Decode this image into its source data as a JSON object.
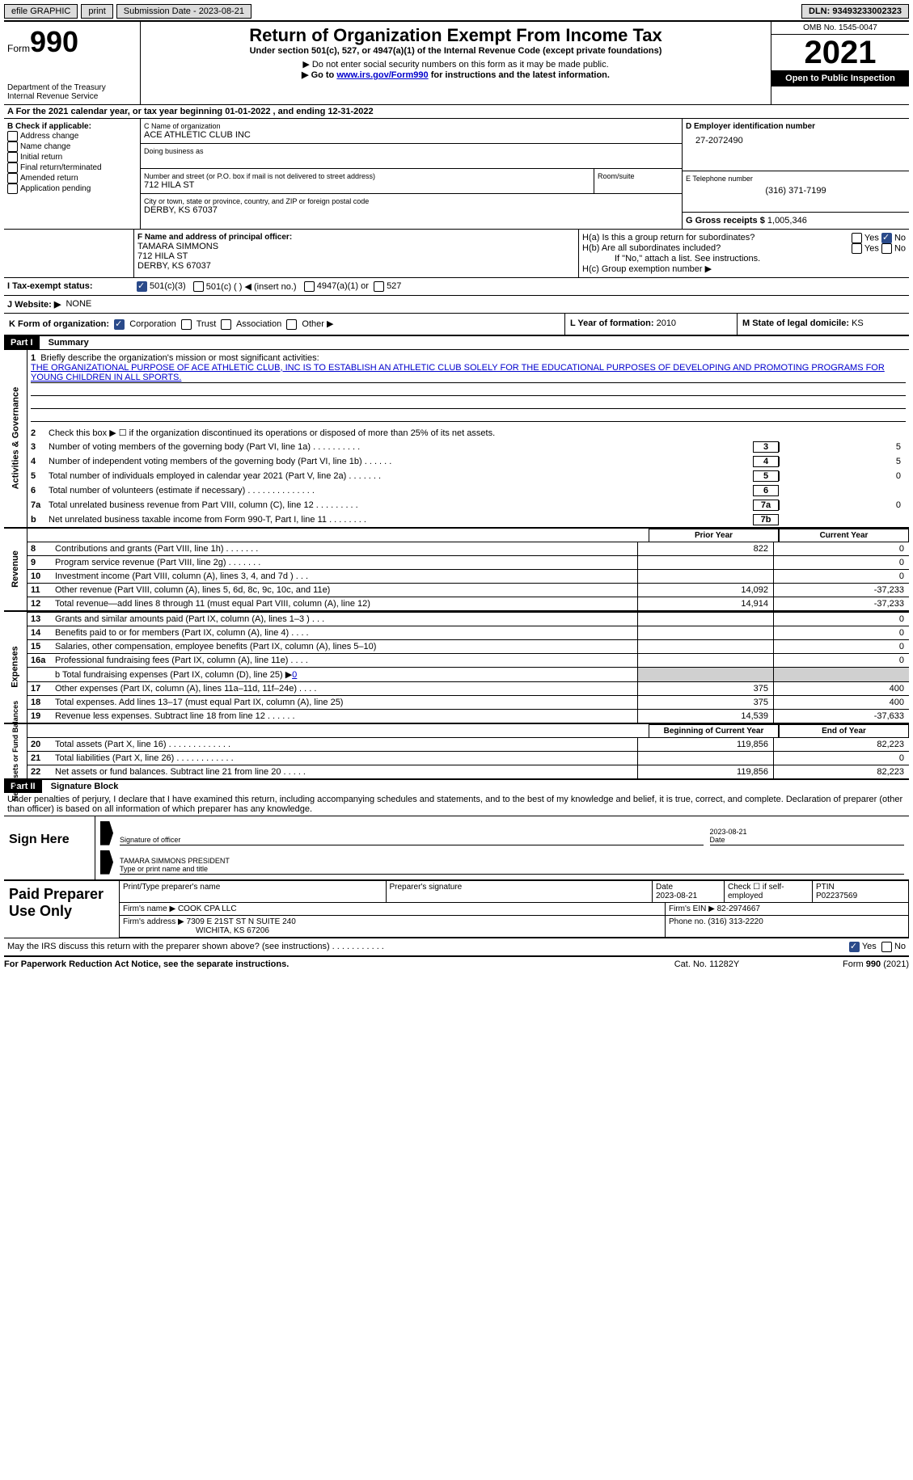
{
  "topbar": {
    "efile": "efile GRAPHIC",
    "print": "print",
    "submission": "Submission Date - 2023-08-21",
    "dln": "DLN: 93493233002323"
  },
  "header": {
    "form_word": "Form",
    "form_num": "990",
    "dept": "Department of the Treasury",
    "irs": "Internal Revenue Service",
    "title": "Return of Organization Exempt From Income Tax",
    "subtitle": "Under section 501(c), 527, or 4947(a)(1) of the Internal Revenue Code (except private foundations)",
    "note1": "▶ Do not enter social security numbers on this form as it may be made public.",
    "note2_pre": "▶ Go to ",
    "note2_link": "www.irs.gov/Form990",
    "note2_post": " for instructions and the latest information.",
    "omb": "OMB No. 1545-0047",
    "year": "2021",
    "open": "Open to Public Inspection"
  },
  "rowA": "A  For the 2021 calendar year, or tax year beginning 01-01-2022    , and ending 12-31-2022",
  "sectionB": {
    "b_label": "B Check if applicable:",
    "checks": [
      "Address change",
      "Name change",
      "Initial return",
      "Final return/terminated",
      "Amended return",
      "Application pending"
    ],
    "c_label": "C Name of organization",
    "org_name": "ACE ATHLETIC CLUB INC",
    "dba": "Doing business as",
    "addr_label": "Number and street (or P.O. box if mail is not delivered to street address)",
    "room": "Room/suite",
    "addr": "712 HILA ST",
    "city_label": "City or town, state or province, country, and ZIP or foreign postal code",
    "city": "DERBY, KS  67037",
    "d_label": "D Employer identification number",
    "ein": "27-2072490",
    "e_label": "E Telephone number",
    "phone": "(316) 371-7199",
    "g_label": "G Gross receipts $",
    "gross": "1,005,346"
  },
  "sectionF": {
    "f_label": "F Name and address of principal officer:",
    "name": "TAMARA SIMMONS",
    "addr1": "712 HILA ST",
    "addr2": "DERBY, KS  67037",
    "ha": "H(a)  Is this a group return for subordinates?",
    "hb": "H(b)  Are all subordinates included?",
    "hb_note": "If \"No,\" attach a list. See instructions.",
    "hc": "H(c)  Group exemption number ▶",
    "yes": "Yes",
    "no": "No"
  },
  "rowI": {
    "label": "I   Tax-exempt status:",
    "opt1": "501(c)(3)",
    "opt2": "501(c) (   ) ◀ (insert no.)",
    "opt3": "4947(a)(1) or",
    "opt4": "527"
  },
  "rowJ": {
    "label": "J   Website: ▶",
    "val": "NONE"
  },
  "rowK": {
    "label": "K Form of organization:",
    "opts": [
      "Corporation",
      "Trust",
      "Association",
      "Other ▶"
    ],
    "l_label": "L Year of formation:",
    "l_val": "2010",
    "m_label": "M State of legal domicile:",
    "m_val": "KS"
  },
  "part1": {
    "header": "Part I",
    "title": "Summary"
  },
  "governance": {
    "label": "Activities & Governance",
    "l1": "Briefly describe the organization's mission or most significant activities:",
    "l1_text": "THE ORGANIZATIONAL PURPOSE OF ACE ATHLETIC CLUB, INC IS TO ESTABLISH AN ATHLETIC CLUB SOLELY FOR THE EDUCATIONAL PURPOSES OF DEVELOPING AND PROMOTING PROGRAMS FOR YOUNG CHILDREN IN ALL SPORTS.",
    "l2": "Check this box ▶ ☐ if the organization discontinued its operations or disposed of more than 25% of its net assets.",
    "l3": "Number of voting members of the governing body (Part VI, line 1a)   .    .    .    .    .    .    .    .    .    .",
    "l3v": "5",
    "l4": "Number of independent voting members of the governing body (Part VI, line 1b)   .    .    .    .    .    .",
    "l4v": "5",
    "l5": "Total number of individuals employed in calendar year 2021 (Part V, line 2a)   .    .    .    .    .    .    .",
    "l5v": "0",
    "l6": "Total number of volunteers (estimate if necessary)    .    .    .    .    .    .    .    .    .    .    .    .    .    .",
    "l6v": "",
    "l7a": "Total unrelated business revenue from Part VIII, column (C), line 12    .    .    .    .    .    .    .    .    .",
    "l7av": "0",
    "l7b": "Net unrelated business taxable income from Form 990-T, Part I, line 11   .    .    .    .    .    .    .    .",
    "l7bv": ""
  },
  "revenue": {
    "label": "Revenue",
    "prior": "Prior Year",
    "current": "Current Year",
    "rows": [
      {
        "n": "8",
        "t": "Contributions and grants (Part VIII, line 1h)    .    .    .    .    .    .    .",
        "p": "822",
        "c": "0"
      },
      {
        "n": "9",
        "t": "Program service revenue (Part VIII, line 2g)    .    .    .    .    .    .    .",
        "p": "",
        "c": "0"
      },
      {
        "n": "10",
        "t": "Investment income (Part VIII, column (A), lines 3, 4, and 7d )    .    .    .",
        "p": "",
        "c": "0"
      },
      {
        "n": "11",
        "t": "Other revenue (Part VIII, column (A), lines 5, 6d, 8c, 9c, 10c, and 11e)",
        "p": "14,092",
        "c": "-37,233"
      },
      {
        "n": "12",
        "t": "Total revenue—add lines 8 through 11 (must equal Part VIII, column (A), line 12)",
        "p": "14,914",
        "c": "-37,233"
      }
    ]
  },
  "expenses": {
    "label": "Expenses",
    "rows": [
      {
        "n": "13",
        "t": "Grants and similar amounts paid (Part IX, column (A), lines 1–3 )   .    .    .",
        "p": "",
        "c": "0"
      },
      {
        "n": "14",
        "t": "Benefits paid to or for members (Part IX, column (A), line 4)   .    .    .    .",
        "p": "",
        "c": "0"
      },
      {
        "n": "15",
        "t": "Salaries, other compensation, employee benefits (Part IX, column (A), lines 5–10)",
        "p": "",
        "c": "0"
      },
      {
        "n": "16a",
        "t": "Professional fundraising fees (Part IX, column (A), line 11e)   .    .    .    .",
        "p": "",
        "c": "0"
      }
    ],
    "l16b_pre": "b  Total fundraising expenses (Part IX, column (D), line 25) ▶",
    "l16b_val": "0",
    "rows2": [
      {
        "n": "17",
        "t": "Other expenses (Part IX, column (A), lines 11a–11d, 11f–24e)   .    .    .    .",
        "p": "375",
        "c": "400"
      },
      {
        "n": "18",
        "t": "Total expenses. Add lines 13–17 (must equal Part IX, column (A), line 25)",
        "p": "375",
        "c": "400"
      },
      {
        "n": "19",
        "t": "Revenue less expenses. Subtract line 18 from line 12   .    .    .    .    .    .",
        "p": "14,539",
        "c": "-37,633"
      }
    ]
  },
  "netassets": {
    "label": "Net Assets or Fund Balances",
    "begin": "Beginning of Current Year",
    "end": "End of Year",
    "rows": [
      {
        "n": "20",
        "t": "Total assets (Part X, line 16)  .    .    .    .    .    .    .    .    .    .    .    .    .",
        "p": "119,856",
        "c": "82,223"
      },
      {
        "n": "21",
        "t": "Total liabilities (Part X, line 26)    .    .    .    .    .    .    .    .    .    .    .    .",
        "p": "",
        "c": "0"
      },
      {
        "n": "22",
        "t": "Net assets or fund balances. Subtract line 21 from line 20   .    .    .    .    .",
        "p": "119,856",
        "c": "82,223"
      }
    ]
  },
  "part2": {
    "header": "Part II",
    "title": "Signature Block",
    "decl": "Under penalties of perjury, I declare that I have examined this return, including accompanying schedules and statements, and to the best of my knowledge and belief, it is true, correct, and complete. Declaration of preparer (other than officer) is based on all information of which preparer has any knowledge."
  },
  "sign": {
    "left": "Sign Here",
    "sig_label": "Signature of officer",
    "date": "2023-08-21",
    "date_label": "Date",
    "name": "TAMARA SIMMONS  PRESIDENT",
    "name_label": "Type or print name and title"
  },
  "prep": {
    "left": "Paid Preparer Use Only",
    "c1_label": "Print/Type preparer's name",
    "c2_label": "Preparer's signature",
    "c3_label": "Date",
    "c3_val": "2023-08-21",
    "c4_label": "Check ☐ if self-employed",
    "c5_label": "PTIN",
    "c5_val": "P02237569",
    "firm_label": "Firm's name    ▶",
    "firm": "COOK CPA LLC",
    "ein_label": "Firm's EIN ▶",
    "ein": "82-2974667",
    "addr_label": "Firm's address ▶",
    "addr1": "7309 E 21ST ST N SUITE 240",
    "addr2": "WICHITA, KS  67206",
    "phone_label": "Phone no.",
    "phone": "(316) 313-2220"
  },
  "discuss": {
    "text": "May the IRS discuss this return with the preparer shown above? (see instructions)    .    .    .    .    .    .    .    .    .    .    .",
    "yes": "Yes",
    "no": "No"
  },
  "footer": {
    "left": "For Paperwork Reduction Act Notice, see the separate instructions.",
    "mid": "Cat. No. 11282Y",
    "right": "Form 990 (2021)"
  }
}
